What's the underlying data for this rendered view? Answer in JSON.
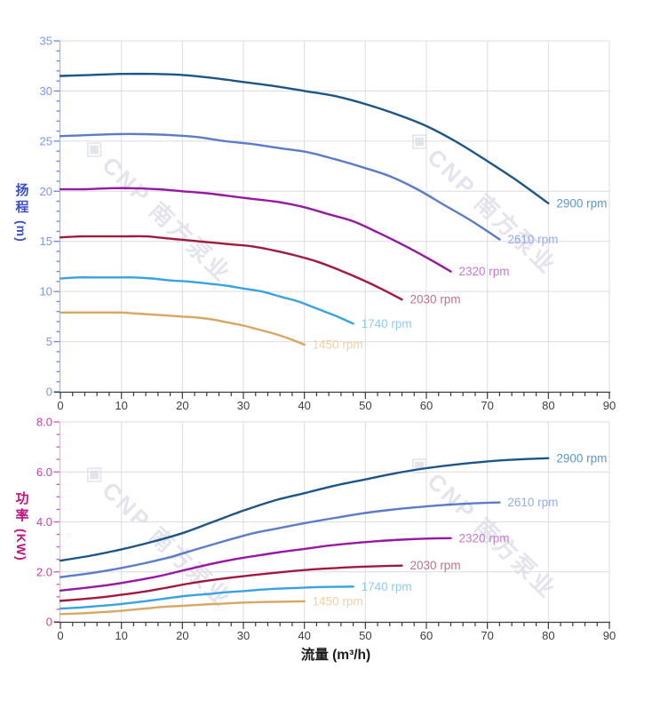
{
  "watermark": {
    "text": "CNP 南方泵业",
    "logo_icon": "cnp-diamond-logo",
    "color": "#e3e4ec"
  },
  "axes": {
    "x_title": "流量 (m³/h)",
    "head_title": "扬程",
    "head_unit": "(m)",
    "power_title": "功率",
    "power_unit": "(KW)"
  },
  "chart_data": [
    {
      "id": "head",
      "type": "line",
      "title": "",
      "ylabel": "扬程 (m)",
      "xlabel": "流量 (m³/h)",
      "xlim": [
        0,
        90
      ],
      "ylim": [
        0,
        35
      ],
      "grid": true,
      "legend_position": "at-line-ends",
      "x_major": 10,
      "x_minor_step": 2,
      "x_tick_labels": [
        "0",
        "10",
        "20",
        "30",
        "40",
        "50",
        "60",
        "70",
        "80",
        "90"
      ],
      "y_major_values": [
        0,
        5,
        10,
        15,
        20,
        25,
        30,
        35
      ],
      "y_labels": [
        "0",
        "5",
        "10",
        "15",
        "20",
        "25",
        "30",
        "35"
      ],
      "y_major_step": 5,
      "y_minor_step": 1,
      "grid_color": "#dcdcde",
      "y_axis_color": "#aab6ec",
      "y_tick_color": "#6584ec",
      "y_label_color": "#7b96ee",
      "x_axis_color": "#3a3a40",
      "x_label_color": "#3c3c46",
      "axis_title_color": "#3b4ed0",
      "series": [
        {
          "name": "2900 rpm",
          "color": "#1b5687",
          "label_color": "#5d97d1",
          "x": [
            0,
            5,
            10,
            15,
            20,
            25,
            30,
            35,
            40,
            45,
            50,
            55,
            60,
            65,
            70,
            75,
            80
          ],
          "y": [
            31.5,
            31.6,
            31.7,
            31.7,
            31.6,
            31.3,
            30.9,
            30.5,
            30.0,
            29.5,
            28.7,
            27.7,
            26.5,
            24.9,
            23.0,
            21.0,
            18.8
          ]
        },
        {
          "name": "2610 rpm",
          "color": "#5a7cc9",
          "label_color": "#97aee3",
          "x": [
            0,
            4.5,
            9,
            13.5,
            18,
            22.5,
            27,
            31.5,
            36,
            40.5,
            45,
            49.5,
            54,
            58.5,
            63,
            67.5,
            72
          ],
          "y": [
            25.5,
            25.6,
            25.7,
            25.7,
            25.6,
            25.4,
            25.0,
            24.7,
            24.3,
            23.9,
            23.2,
            22.4,
            21.5,
            20.2,
            18.6,
            17.0,
            15.2
          ]
        },
        {
          "name": "2320 rpm",
          "color": "#9719a3",
          "label_color": "#c878d0",
          "x": [
            0,
            4,
            8,
            12,
            16,
            20,
            24,
            28,
            32,
            36,
            40,
            44,
            48,
            52,
            56,
            60,
            64
          ],
          "y": [
            20.2,
            20.2,
            20.3,
            20.3,
            20.2,
            20.0,
            19.8,
            19.5,
            19.2,
            18.9,
            18.4,
            17.7,
            17.0,
            15.9,
            14.7,
            13.4,
            12.0
          ]
        },
        {
          "name": "2030 rpm",
          "color": "#a11a3e",
          "label_color": "#bb7489",
          "x": [
            0,
            3.5,
            7,
            10.5,
            14,
            17.5,
            21,
            24.5,
            28,
            31.5,
            35,
            38.5,
            42,
            45.5,
            49,
            52.5,
            56
          ],
          "y": [
            15.4,
            15.5,
            15.5,
            15.5,
            15.5,
            15.3,
            15.1,
            14.9,
            14.7,
            14.5,
            14.1,
            13.6,
            13.0,
            12.2,
            11.3,
            10.3,
            9.2
          ]
        },
        {
          "name": "1740 rpm",
          "color": "#36a3e2",
          "label_color": "#8ecbf2",
          "x": [
            0,
            3,
            6,
            9,
            12,
            15,
            18,
            21,
            24,
            27,
            30,
            33,
            36,
            39,
            42,
            45,
            48
          ],
          "y": [
            11.3,
            11.4,
            11.4,
            11.4,
            11.4,
            11.3,
            11.1,
            11.0,
            10.8,
            10.6,
            10.3,
            10.0,
            9.5,
            9.0,
            8.3,
            7.6,
            6.8
          ]
        },
        {
          "name": "1450 rpm",
          "color": "#d7a763",
          "label_color": "#ecd2a4",
          "x": [
            0,
            2.5,
            5,
            7.5,
            10,
            12.5,
            15,
            17.5,
            20,
            22.5,
            25,
            27.5,
            30,
            32.5,
            35,
            37.5,
            40
          ],
          "y": [
            7.9,
            7.9,
            7.9,
            7.9,
            7.9,
            7.8,
            7.7,
            7.6,
            7.5,
            7.4,
            7.2,
            6.9,
            6.6,
            6.2,
            5.8,
            5.3,
            4.7
          ]
        }
      ]
    },
    {
      "id": "power",
      "type": "line",
      "title": "",
      "ylabel": "功率 (KW)",
      "xlabel": "流量 (m³/h)",
      "xlim": [
        0,
        90
      ],
      "ylim": [
        0,
        8
      ],
      "grid": true,
      "legend_position": "at-line-ends",
      "x_major": 10,
      "x_minor_step": 2,
      "x_tick_labels": [
        "0",
        "10",
        "20",
        "30",
        "40",
        "50",
        "60",
        "70",
        "80",
        "90"
      ],
      "y_major_values": [
        0,
        2,
        4,
        6,
        8
      ],
      "y_labels": [
        "0",
        "2.0",
        "4.0",
        "6.0",
        "8.0"
      ],
      "y_major_step": 2,
      "y_minor_step": 0.5,
      "grid_color": "#dcdcde",
      "y_axis_color": "#c9c9d2",
      "y_tick_color": "#e052a8",
      "y_label_color": "#d23c9e",
      "x_axis_color": "#3a3a40",
      "x_label_color": "#3c3c46",
      "axis_title_color": "#c01380",
      "series": [
        {
          "name": "2900 rpm",
          "color": "#1b5687",
          "label_color": "#5d97d1",
          "x": [
            0,
            5,
            10,
            15,
            20,
            25,
            30,
            35,
            40,
            45,
            50,
            55,
            60,
            65,
            70,
            75,
            80
          ],
          "y": [
            2.45,
            2.65,
            2.9,
            3.2,
            3.55,
            4.0,
            4.45,
            4.85,
            5.15,
            5.45,
            5.7,
            5.95,
            6.15,
            6.3,
            6.42,
            6.5,
            6.55
          ]
        },
        {
          "name": "2610 rpm",
          "color": "#5a7cc9",
          "label_color": "#97aee3",
          "x": [
            0,
            4.5,
            9,
            13.5,
            18,
            22.5,
            27,
            31.5,
            36,
            40.5,
            45,
            49.5,
            54,
            58.5,
            63,
            67.5,
            72
          ],
          "y": [
            1.79,
            1.93,
            2.11,
            2.33,
            2.59,
            2.92,
            3.24,
            3.54,
            3.76,
            3.97,
            4.16,
            4.34,
            4.48,
            4.59,
            4.68,
            4.74,
            4.78
          ]
        },
        {
          "name": "2320 rpm",
          "color": "#9719a3",
          "label_color": "#c878d0",
          "x": [
            0,
            4,
            8,
            12,
            16,
            20,
            24,
            28,
            32,
            36,
            40,
            44,
            48,
            52,
            56,
            60,
            64
          ],
          "y": [
            1.25,
            1.36,
            1.48,
            1.64,
            1.82,
            2.05,
            2.28,
            2.48,
            2.64,
            2.79,
            2.92,
            3.05,
            3.15,
            3.23,
            3.29,
            3.33,
            3.35
          ]
        },
        {
          "name": "2030 rpm",
          "color": "#a11a3e",
          "label_color": "#bb7489",
          "x": [
            0,
            3.5,
            7,
            10.5,
            14,
            17.5,
            21,
            24.5,
            28,
            31.5,
            35,
            38.5,
            42,
            45.5,
            49,
            52.5,
            56
          ],
          "y": [
            0.84,
            0.91,
            0.99,
            1.1,
            1.22,
            1.37,
            1.53,
            1.66,
            1.77,
            1.87,
            1.96,
            2.04,
            2.11,
            2.16,
            2.2,
            2.23,
            2.25
          ]
        },
        {
          "name": "1740 rpm",
          "color": "#36a3e2",
          "label_color": "#8ecbf2",
          "x": [
            0,
            3,
            6,
            9,
            12,
            15,
            18,
            21,
            24,
            27,
            30,
            33,
            36,
            39,
            42,
            45,
            48
          ],
          "y": [
            0.53,
            0.57,
            0.63,
            0.69,
            0.77,
            0.86,
            0.96,
            1.05,
            1.11,
            1.18,
            1.23,
            1.29,
            1.33,
            1.36,
            1.39,
            1.4,
            1.41
          ]
        },
        {
          "name": "1450 rpm",
          "color": "#d7a763",
          "label_color": "#ecd2a4",
          "x": [
            0,
            2.5,
            5,
            7.5,
            10,
            12.5,
            15,
            17.5,
            20,
            22.5,
            25,
            27.5,
            30,
            32.5,
            35,
            37.5,
            40
          ],
          "y": [
            0.31,
            0.33,
            0.36,
            0.4,
            0.44,
            0.5,
            0.56,
            0.61,
            0.64,
            0.68,
            0.71,
            0.74,
            0.77,
            0.79,
            0.8,
            0.81,
            0.82
          ]
        }
      ]
    }
  ]
}
